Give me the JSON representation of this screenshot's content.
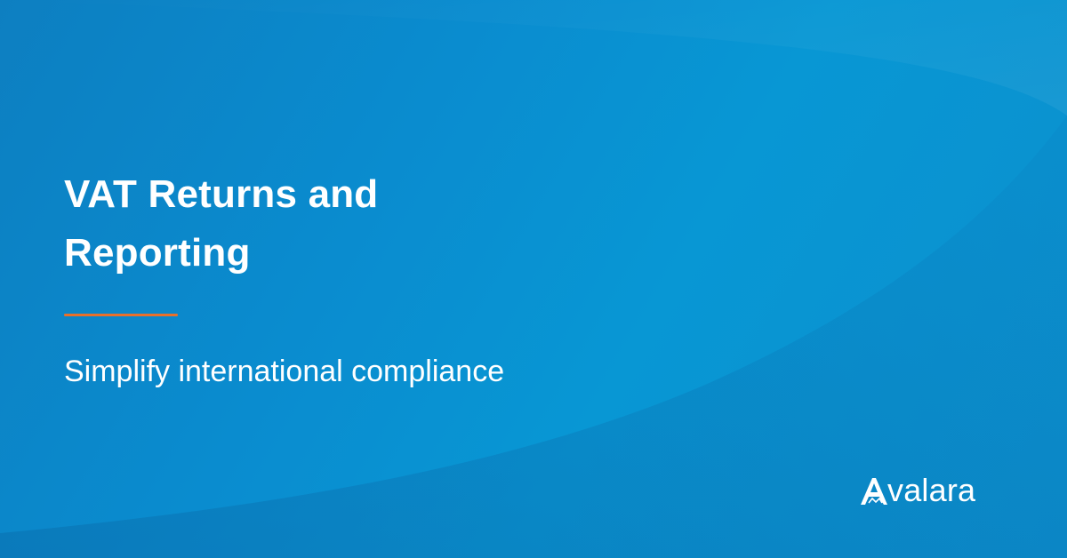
{
  "banner": {
    "title_line1": "VAT Returns and",
    "title_line2": "Reporting",
    "subtitle": "Simplify international compliance",
    "logo": {
      "wordmark_rest": "valara",
      "mark_icon": "avalara-a-mountain-icon"
    }
  },
  "colors": {
    "background_start": "#0d7fc1",
    "background_end": "#0897d4",
    "accent": "#e8702a",
    "text": "#ffffff"
  }
}
